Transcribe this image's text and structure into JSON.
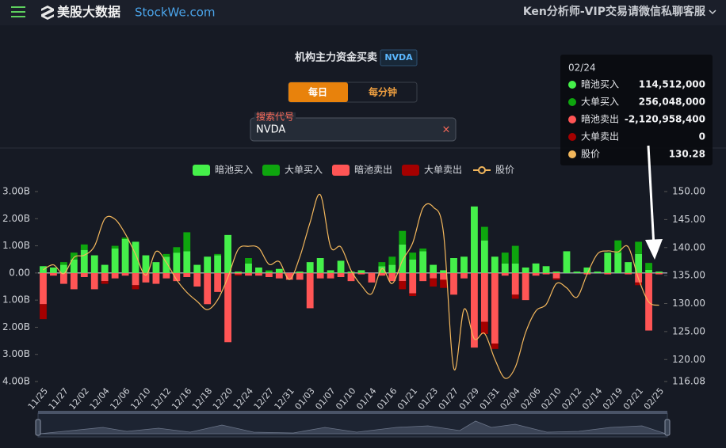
{
  "header": {
    "brand": "美股大数据",
    "site": "StockWe.com",
    "account": "Ken分析师-VIP交易请微信私聊客服"
  },
  "controls": {
    "tabs": [
      "每日",
      "每分钟"
    ],
    "search_label": "搜索代号",
    "search_value": "NVDA",
    "clear": "×"
  },
  "chart_data": {
    "type": "bar",
    "title": "机构主力资金买卖",
    "ticker": "NVDA",
    "categories": [
      "11/25",
      null,
      "11/27",
      null,
      "12/02",
      null,
      "12/04",
      null,
      "12/06",
      null,
      "12/10",
      null,
      "12/12",
      null,
      "12/16",
      null,
      "12/18",
      null,
      "12/20",
      null,
      "12/24",
      null,
      "12/27",
      null,
      "12/31",
      null,
      "01/03",
      null,
      "01/07",
      null,
      "01/10",
      null,
      "01/14",
      null,
      "01/16",
      null,
      "01/21",
      null,
      "01/23",
      null,
      "01/27",
      null,
      "01/29",
      null,
      "01/31",
      null,
      "02/04",
      null,
      "02/06",
      null,
      "02/10",
      null,
      "02/12",
      null,
      "02/14",
      null,
      "02/19",
      null,
      "02/21",
      null,
      "02/25"
    ],
    "series": [
      {
        "name": "暗池买入",
        "color": "#45f04a",
        "values": [
          250000000.0,
          200000000.0,
          300000000.0,
          500000000.0,
          850000000.0,
          650000000.0,
          300000000.0,
          900000000.0,
          1250000000.0,
          1150000000.0,
          650000000.0,
          400000000.0,
          600000000.0,
          750000000.0,
          800000000.0,
          300000000.0,
          600000000.0,
          650000000.0,
          1400000000.0,
          50000000.0,
          350000000.0,
          200000000.0,
          50000000.0,
          150000000.0,
          0,
          50000000.0,
          400000000.0,
          550000000.0,
          100000000.0,
          450000000.0,
          50000000.0,
          100000000.0,
          0,
          250000000.0,
          300000000.0,
          1050000000.0,
          500000000.0,
          800000000.0,
          300000000.0,
          100000000.0,
          550000000.0,
          600000000.0,
          2450000000.0,
          1200000000.0,
          600000000.0,
          350000000.0,
          350000000.0,
          200000000.0,
          350000000.0,
          250000000.0,
          50000000.0,
          800000000.0,
          50000000.0,
          200000000.0,
          50000000.0,
          750000000.0,
          750000000.0,
          400000000.0,
          700000000.0,
          114512000,
          50000000.0
        ]
      },
      {
        "name": "大单买入",
        "color": "#0ea50e",
        "values": [
          0,
          0,
          100000000.0,
          250000000.0,
          200000000.0,
          0,
          0,
          100000000.0,
          50000000.0,
          0,
          0,
          0,
          100000000.0,
          200000000.0,
          700000000.0,
          0,
          0,
          50000000.0,
          0,
          0,
          200000000.0,
          0,
          50000000.0,
          0,
          0,
          0,
          0,
          0,
          0,
          0,
          0,
          0,
          0,
          150000000.0,
          300000000.0,
          500000000.0,
          250000000.0,
          100000000.0,
          0,
          0,
          0,
          0,
          0,
          500000000.0,
          0,
          400000000.0,
          650000000.0,
          0,
          0,
          0,
          0,
          0,
          0,
          0,
          0,
          0,
          450000000.0,
          0,
          450000000.0,
          256048000,
          0
        ]
      },
      {
        "name": "暗池卖出",
        "color": "#ff5555",
        "values": [
          -1150000000.0,
          -100000000.0,
          -400000000.0,
          -600000000.0,
          -150000000.0,
          -600000000.0,
          -300000000.0,
          -200000000.0,
          -100000000.0,
          -450000000.0,
          -350000000.0,
          -400000000.0,
          -200000000.0,
          -300000000.0,
          -150000000.0,
          -500000000.0,
          -1150000000.0,
          -700000000.0,
          -2550000000.0,
          -50000000.0,
          -100000000.0,
          -100000000.0,
          -150000000.0,
          -200000000.0,
          -250000000.0,
          -250000000.0,
          -1300000000.0,
          -200000000.0,
          -200000000.0,
          -150000000.0,
          -300000000.0,
          -50000000.0,
          -350000000.0,
          -100000000.0,
          -300000000.0,
          -300000000.0,
          -750000000.0,
          -300000000.0,
          -200000000.0,
          -250000000.0,
          -800000000.0,
          -200000000.0,
          -2750000000.0,
          -1800000000.0,
          -2600000000.0,
          -100000000.0,
          -800000000.0,
          -1000000000.0,
          -100000000.0,
          -50000000.0,
          -200000000.0,
          0,
          0,
          -50000000.0,
          0,
          -50000000.0,
          0,
          -50000000.0,
          -350000000.0,
          -2120958400,
          -50000000.0
        ]
      },
      {
        "name": "大单卖出",
        "color": "#a40000",
        "values": [
          -550000000.0,
          0,
          0,
          0,
          0,
          0,
          -100000000.0,
          0,
          0,
          -150000000.0,
          0,
          0,
          0,
          0,
          0,
          0,
          0,
          0,
          0,
          -50000000.0,
          0,
          0,
          0,
          0,
          0,
          0,
          0,
          0,
          0,
          0,
          0,
          0,
          0,
          0,
          0,
          -300000000.0,
          -100000000.0,
          0,
          -300000000.0,
          -300000000.0,
          0,
          0,
          0,
          -450000000.0,
          -200000000.0,
          0,
          -150000000.0,
          0,
          0,
          0,
          -50000000.0,
          0,
          0,
          0,
          0,
          0,
          0,
          0,
          -100000000.0,
          0,
          0
        ]
      },
      {
        "name": "股价",
        "color": "#f3b75c",
        "axis": "y2",
        "type": "line",
        "values": [
          136.02,
          136.92,
          135.34,
          138.25,
          138.63,
          140.26,
          145.14,
          145.06,
          142.44,
          138.81,
          135.07,
          139.31,
          137.34,
          134.25,
          132.0,
          130.39,
          128.91,
          130.68,
          134.7,
          139.67,
          140.22,
          139.93,
          137.01,
          137.49,
          134.29,
          138.31,
          144.47,
          149.43,
          140.14,
          140.11,
          135.91,
          133.23,
          131.76,
          136.24,
          133.57,
          137.71,
          140.83,
          147.07,
          147.22,
          142.62,
          118.42,
          128.99,
          123.7,
          124.65,
          120.07,
          116.66,
          118.65,
          124.83,
          128.68,
          129.84,
          133.57,
          132.8,
          131.14,
          135.29,
          138.85,
          139.4,
          139.23,
          140.11,
          134.43,
          130.28,
          129.7
        ]
      }
    ],
    "ylim": [
      -4000000000.0,
      3000000000.0
    ],
    "yticks": [
      {
        "value": 3000000000.0,
        "label": "3.00B"
      },
      {
        "value": 2000000000.0,
        "label": "2.00B"
      },
      {
        "value": 1000000000.0,
        "label": "1.00B"
      },
      {
        "value": 0,
        "label": "0.00"
      },
      {
        "value": -1000000000.0,
        "label": "1.00B"
      },
      {
        "value": -2000000000.0,
        "label": "2.00B"
      },
      {
        "value": -3000000000.0,
        "label": "3.00B"
      },
      {
        "value": -4000000000.0,
        "label": "4.00B"
      }
    ],
    "y2lim": [
      116.08,
      150
    ],
    "y2ticks": [
      {
        "value": 150,
        "label": "150.00"
      },
      {
        "value": 145,
        "label": "145.00"
      },
      {
        "value": 140,
        "label": "140.00"
      },
      {
        "value": 135,
        "label": "135.00"
      },
      {
        "value": 130,
        "label": "130.00"
      },
      {
        "value": 125,
        "label": "125.00"
      },
      {
        "value": 120,
        "label": "120.00"
      },
      116.08
    ],
    "grid": false,
    "legend": "top",
    "tooltip": {
      "category": "02/24",
      "value_labels": [
        "114,512,000",
        "256,048,000",
        "-2,120,958,400",
        "0",
        "130.28"
      ]
    }
  }
}
